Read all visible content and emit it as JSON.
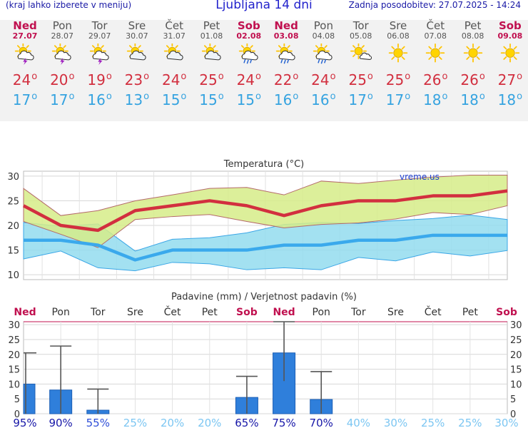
{
  "header": {
    "left": "(kraj lahko izberete v meniju)",
    "title": "Ljubljana 14 dni",
    "right": "Zadnja posodobitev: 27.07.2025 - 14:24"
  },
  "colors": {
    "max": "#d22f3f",
    "min": "#35a3e0",
    "maxBand": "#d6ec88",
    "minBand": "#93dcee",
    "overlap": "#8ed985",
    "bar": "#2f7fdb",
    "weekend": "#c0104f"
  },
  "days": [
    {
      "name": "Ned",
      "date": "27.07",
      "weekend": true,
      "icon": "sun-cloud-lightning-icon",
      "max": "24",
      "min": "17"
    },
    {
      "name": "Pon",
      "date": "28.07",
      "weekend": false,
      "icon": "sun-cloud-lightning-icon",
      "max": "20",
      "min": "17"
    },
    {
      "name": "Tor",
      "date": "29.07",
      "weekend": false,
      "icon": "sun-cloud-lightning-icon",
      "max": "19",
      "min": "16"
    },
    {
      "name": "Sre",
      "date": "30.07",
      "weekend": false,
      "icon": "sun-cloud-icon",
      "max": "23",
      "min": "13"
    },
    {
      "name": "Čet",
      "date": "31.07",
      "weekend": false,
      "icon": "sun-cloud-icon",
      "max": "24",
      "min": "15"
    },
    {
      "name": "Pet",
      "date": "01.08",
      "weekend": false,
      "icon": "sun-cloud-icon",
      "max": "25",
      "min": "15"
    },
    {
      "name": "Sob",
      "date": "02.08",
      "weekend": true,
      "icon": "sun-cloud-rain-icon",
      "max": "24",
      "min": "15"
    },
    {
      "name": "Ned",
      "date": "03.08",
      "weekend": true,
      "icon": "sun-cloud-rain-icon",
      "max": "22",
      "min": "16"
    },
    {
      "name": "Pon",
      "date": "04.08",
      "weekend": false,
      "icon": "sun-cloud-rain-icon",
      "max": "24",
      "min": "16"
    },
    {
      "name": "Tor",
      "date": "05.08",
      "weekend": false,
      "icon": "sun-small-cloud-icon",
      "max": "25",
      "min": "17"
    },
    {
      "name": "Sre",
      "date": "06.08",
      "weekend": false,
      "icon": "sun-icon",
      "max": "25",
      "min": "17"
    },
    {
      "name": "Čet",
      "date": "07.08",
      "weekend": false,
      "icon": "sun-icon",
      "max": "26",
      "min": "18"
    },
    {
      "name": "Pet",
      "date": "08.08",
      "weekend": false,
      "icon": "sun-icon",
      "max": "26",
      "min": "18"
    },
    {
      "name": "Sob",
      "date": "09.08",
      "weekend": true,
      "icon": "sun-icon",
      "max": "27",
      "min": "18"
    }
  ],
  "chart_data": [
    {
      "type": "line",
      "title": "Temperatura (°C)",
      "watermark": "vreme.us",
      "ylim": [
        9,
        31
      ],
      "yticks": [
        10,
        15,
        20,
        25,
        30
      ],
      "grid": true,
      "x": [
        "27.07",
        "28.07",
        "29.07",
        "30.07",
        "31.07",
        "01.08",
        "02.08",
        "03.08",
        "04.08",
        "05.08",
        "06.08",
        "07.08",
        "08.08",
        "09.08"
      ],
      "series": [
        {
          "role": "max",
          "values": [
            24,
            20,
            19,
            23,
            24,
            25,
            24,
            22,
            24,
            25,
            25,
            26,
            26,
            27
          ]
        },
        {
          "role": "min",
          "values": [
            17,
            17,
            16,
            13,
            15,
            15,
            15,
            16,
            16,
            17,
            17,
            18,
            18,
            18
          ]
        },
        {
          "role": "max_upper",
          "values": [
            27.5,
            22,
            23,
            25,
            26.2,
            27.5,
            27.7,
            26.2,
            29,
            28.5,
            29.2,
            29.8,
            30.2,
            30.2
          ]
        },
        {
          "role": "max_lower",
          "values": [
            20.8,
            18.2,
            15.5,
            21.2,
            21.8,
            22.2,
            20.8,
            19.5,
            20.2,
            20.5,
            21.3,
            22.6,
            22.2,
            24
          ]
        },
        {
          "role": "min_upper",
          "values": [
            20.6,
            19.8,
            20.3,
            14.8,
            17.2,
            17.5,
            18.5,
            20.2,
            20.6,
            20.4,
            21,
            21.4,
            22.1,
            21.2
          ]
        },
        {
          "role": "min_lower",
          "values": [
            13.2,
            14.8,
            11.4,
            10.8,
            12.5,
            12.2,
            11,
            11.4,
            11,
            13.5,
            12.8,
            14.6,
            13.8,
            14.9
          ]
        }
      ]
    },
    {
      "type": "bar",
      "title": "Padavine (mm) / Verjetnost padavin (%)",
      "ylim": [
        0,
        31
      ],
      "yticks": [
        0,
        5,
        10,
        15,
        20,
        25,
        30
      ],
      "grid": true,
      "categories": [
        "Ned",
        "Pon",
        "Tor",
        "Sre",
        "Čet",
        "Pet",
        "Sob",
        "Ned",
        "Pon",
        "Tor",
        "Sre",
        "Čet",
        "Pet",
        "Sob"
      ],
      "values": [
        10,
        8,
        1.2,
        0,
        0,
        0,
        5.5,
        20.5,
        4.8,
        0,
        0,
        0,
        0,
        0
      ],
      "ranges": [
        [
          0,
          20.5
        ],
        [
          0,
          22.8
        ],
        [
          0,
          8.3
        ],
        null,
        null,
        null,
        [
          0,
          12.6
        ],
        [
          11,
          31
        ],
        [
          0,
          14.2
        ],
        null,
        null,
        null,
        null,
        null
      ],
      "probabilities": [
        "95%",
        "90%",
        "55%",
        "25%",
        "20%",
        "20%",
        "65%",
        "75%",
        "70%",
        "40%",
        "30%",
        "25%",
        "25%",
        "30%"
      ]
    }
  ]
}
